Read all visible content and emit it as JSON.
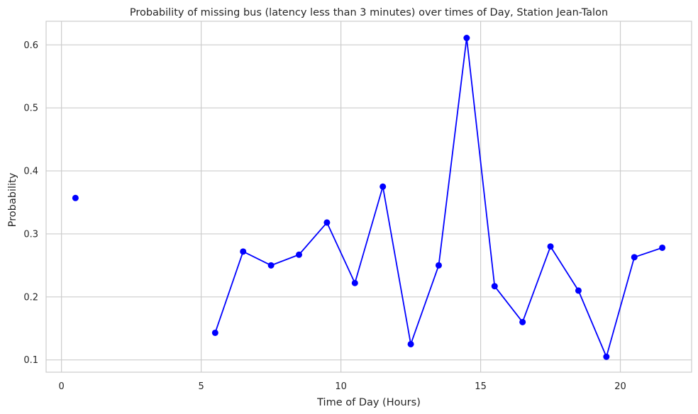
{
  "chart_data": {
    "type": "line",
    "title": "Probability of missing bus (latency less than 3 minutes) over times of Day, Station Jean-Talon",
    "xlabel": "Time of Day (Hours)",
    "ylabel": "Probability",
    "xlim": [
      -0.55,
      22.55
    ],
    "ylim": [
      0.0805,
      0.6375
    ],
    "xticks": [
      0,
      5,
      10,
      15,
      20
    ],
    "yticks": [
      0.1,
      0.2,
      0.3,
      0.4,
      0.5,
      0.6
    ],
    "grid": true,
    "series": [
      {
        "color": "#0000ff",
        "marker": "circle",
        "x": [
          0.5,
          5.5,
          6.5,
          7.5,
          8.5,
          9.5,
          10.5,
          11.5,
          12.5,
          13.5,
          14.5,
          15.5,
          16.5,
          17.5,
          18.5,
          19.5,
          20.5,
          21.5
        ],
        "y": [
          0.357,
          0.143,
          0.272,
          0.25,
          0.267,
          0.318,
          0.222,
          0.375,
          0.125,
          0.25,
          0.611,
          0.217,
          0.16,
          0.28,
          0.21,
          0.105,
          0.263,
          0.278
        ],
        "segments": [
          [
            0,
            0
          ],
          [
            1,
            17
          ]
        ]
      }
    ]
  },
  "colors": {
    "line": "#0000ff",
    "grid": "#cccccc",
    "spine": "#cccccc",
    "text": "#262626"
  }
}
